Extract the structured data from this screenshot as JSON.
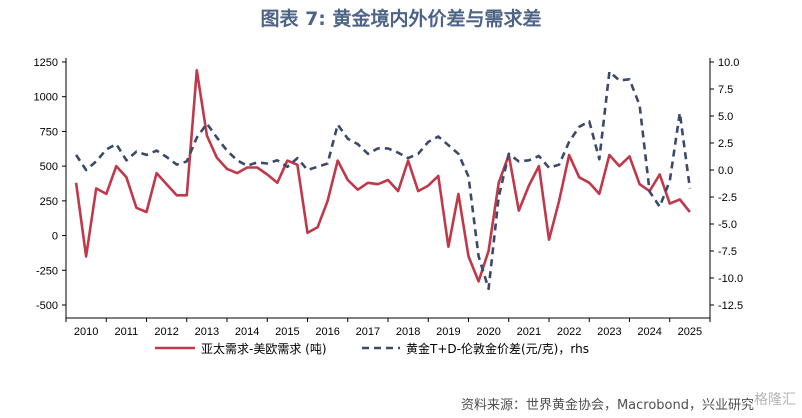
{
  "page": {
    "title": "图表 7:  黄金境内外价差与需求差",
    "source": "资料来源：世界黄金协会，Macrobond，兴业研究",
    "watermark": "格隆汇"
  },
  "chart_data": {
    "type": "line",
    "title": "图表 7:  黄金境内外价差与需求差",
    "xlabel": "",
    "ylabel": "",
    "x_tick_labels": [
      "2010",
      "2011",
      "2012",
      "2013",
      "2014",
      "2015",
      "2016",
      "2017",
      "2018",
      "2019",
      "2020",
      "2021",
      "2022",
      "2023",
      "2024",
      "2025"
    ],
    "left_axis": {
      "ylim": [
        -500,
        1250
      ],
      "ticks": [
        -500,
        -250,
        0,
        250,
        500,
        750,
        1000,
        1250
      ],
      "tick_labels": [
        "-500",
        "-250",
        "0",
        "250",
        "500",
        "750",
        "1000",
        "1250"
      ]
    },
    "right_axis": {
      "ylim": [
        -12.5,
        10.0
      ],
      "ticks": [
        -12.5,
        -10,
        -7.5,
        -5,
        -2.5,
        0,
        2.5,
        5,
        7.5,
        10
      ],
      "tick_labels": [
        "-12.5",
        "-10.0",
        "-7.5",
        "-5.0",
        "-2.5",
        "0.0",
        "2.5",
        "5.0",
        "7.5",
        "10.0"
      ]
    },
    "series": [
      {
        "name": "亚太需求-美欧需求 (吨)",
        "axis": "left",
        "color": "#c0394b",
        "style": "solid",
        "x": [
          2010.0,
          2010.25,
          2010.5,
          2010.75,
          2011.0,
          2011.25,
          2011.5,
          2011.75,
          2012.0,
          2012.25,
          2012.5,
          2012.75,
          2013.0,
          2013.25,
          2013.5,
          2013.75,
          2014.0,
          2014.25,
          2014.5,
          2014.75,
          2015.0,
          2015.25,
          2015.5,
          2015.75,
          2016.0,
          2016.25,
          2016.5,
          2016.75,
          2017.0,
          2017.25,
          2017.5,
          2017.75,
          2018.0,
          2018.25,
          2018.5,
          2018.75,
          2019.0,
          2019.25,
          2019.5,
          2019.75,
          2020.0,
          2020.25,
          2020.5,
          2020.75,
          2021.0,
          2021.25,
          2021.5,
          2021.75,
          2022.0,
          2022.25,
          2022.5,
          2022.75,
          2023.0,
          2023.25,
          2023.5,
          2023.75,
          2024.0,
          2024.25,
          2024.5,
          2024.75,
          2025.0,
          2025.25
        ],
        "values": [
          380,
          -150,
          340,
          300,
          500,
          420,
          200,
          170,
          450,
          370,
          290,
          290,
          1190,
          720,
          560,
          480,
          450,
          490,
          490,
          440,
          380,
          540,
          510,
          20,
          60,
          250,
          540,
          400,
          330,
          380,
          370,
          400,
          320,
          540,
          320,
          360,
          430,
          -80,
          300,
          -150,
          -330,
          -110,
          380,
          580,
          180,
          360,
          500,
          -30,
          250,
          580,
          420,
          380,
          300,
          580,
          500,
          570,
          370,
          320,
          440,
          230,
          260,
          170
        ]
      },
      {
        "name": "黄金T+D-伦敦金价差(元/克)，rhs",
        "axis": "right",
        "color": "#3b4a6b",
        "style": "dashed",
        "x": [
          2010.0,
          2010.25,
          2010.5,
          2010.75,
          2011.0,
          2011.25,
          2011.5,
          2011.75,
          2012.0,
          2012.25,
          2012.5,
          2012.75,
          2013.0,
          2013.25,
          2013.5,
          2013.75,
          2014.0,
          2014.25,
          2014.5,
          2014.75,
          2015.0,
          2015.25,
          2015.5,
          2015.75,
          2016.0,
          2016.25,
          2016.5,
          2016.75,
          2017.0,
          2017.25,
          2017.5,
          2017.75,
          2018.0,
          2018.25,
          2018.5,
          2018.75,
          2019.0,
          2019.25,
          2019.5,
          2019.75,
          2020.0,
          2020.25,
          2020.5,
          2020.75,
          2021.0,
          2021.25,
          2021.5,
          2021.75,
          2022.0,
          2022.25,
          2022.5,
          2022.75,
          2023.0,
          2023.25,
          2023.5,
          2023.75,
          2024.0,
          2024.25,
          2024.5,
          2024.75,
          2025.0,
          2025.25
        ],
        "values": [
          1.4,
          0.0,
          0.8,
          1.9,
          2.4,
          0.9,
          1.7,
          1.4,
          1.8,
          1.2,
          0.5,
          0.8,
          3.0,
          4.3,
          3.0,
          1.8,
          0.9,
          0.4,
          0.7,
          0.6,
          0.9,
          0.3,
          1.1,
          0.0,
          0.3,
          0.6,
          4.2,
          2.9,
          2.4,
          1.5,
          2.0,
          2.0,
          1.6,
          1.1,
          1.5,
          2.6,
          3.1,
          2.3,
          1.5,
          -0.6,
          -8.0,
          -11.0,
          -2.5,
          1.5,
          0.8,
          0.9,
          1.3,
          0.2,
          0.5,
          2.6,
          4.0,
          4.5,
          1.0,
          9.1,
          8.3,
          8.4,
          6.0,
          -2.0,
          -3.4,
          -1.0,
          5.3,
          -1.7
        ]
      }
    ],
    "legend": {
      "placement": "bottom-center",
      "entries": [
        "亚太需求-美欧需求 (吨)",
        "黄金T+D-伦敦金价差(元/克)，rhs"
      ]
    }
  }
}
